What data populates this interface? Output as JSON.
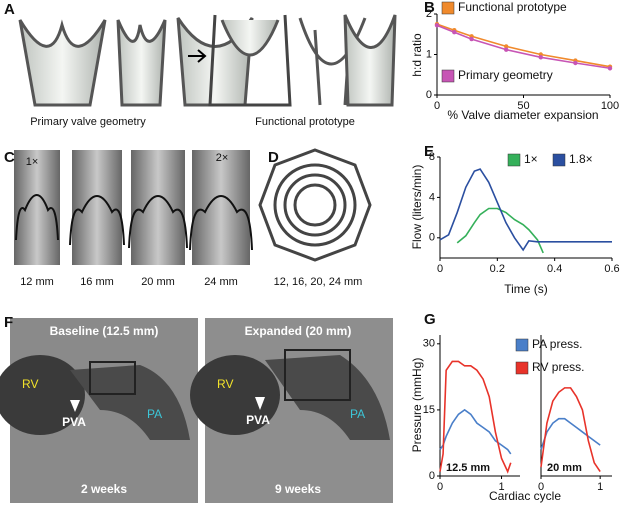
{
  "chart_data": [
    {
      "type": "line",
      "panel": "B",
      "xlabel": "% Valve diameter expansion",
      "ylabel": "h:d ratio",
      "x": [
        0,
        10,
        20,
        40,
        60,
        80,
        100
      ],
      "xlim": [
        0,
        100
      ],
      "ylim": [
        0,
        2
      ],
      "xticks": [
        0,
        50,
        100
      ],
      "yticks": [
        0,
        1,
        2
      ],
      "markers": true,
      "series": [
        {
          "name": "Functional prototype",
          "color": "#f08a2c",
          "values": [
            1.75,
            1.6,
            1.45,
            1.2,
            1.0,
            0.85,
            0.7
          ]
        },
        {
          "name": "Primary geometry",
          "color": "#c755b5",
          "values": [
            1.72,
            1.55,
            1.38,
            1.12,
            0.93,
            0.79,
            0.66
          ]
        }
      ]
    },
    {
      "type": "line",
      "panel": "E",
      "xlabel": "Time (s)",
      "ylabel": "Flow (liters/min)",
      "x": [
        0,
        0.03,
        0.06,
        0.09,
        0.12,
        0.14,
        0.17,
        0.2,
        0.23,
        0.26,
        0.29,
        0.31,
        0.34,
        0.36,
        0.4,
        0.5,
        0.6
      ],
      "xlim": [
        0,
        0.6
      ],
      "ylim": [
        -2,
        8
      ],
      "xticks": [
        0,
        0.2,
        0.4,
        0.6
      ],
      "yticks": [
        0,
        4,
        8
      ],
      "series": [
        {
          "name": "1×",
          "color": "#35b05a",
          "values": [
            null,
            null,
            -0.5,
            0.2,
            1.5,
            2.3,
            2.9,
            2.9,
            2.5,
            1.8,
            1.3,
            0.8,
            -0.2,
            -1.5,
            null,
            null,
            null
          ]
        },
        {
          "name": "1.8×",
          "color": "#2b4fa0",
          "values": [
            -0.2,
            0.3,
            2.5,
            5.0,
            6.6,
            6.8,
            5.5,
            3.5,
            1.5,
            0.0,
            -1.2,
            -0.3,
            -0.4,
            -0.4,
            -0.4,
            -0.4,
            -0.4
          ]
        }
      ]
    },
    {
      "type": "line",
      "panel": "G",
      "xlabel": "Cardiac cycle",
      "ylabel": "Pressure (mmHg)",
      "annotation": "12.5 mm",
      "x": [
        0,
        0.05,
        0.1,
        0.2,
        0.3,
        0.4,
        0.5,
        0.6,
        0.7,
        0.8,
        0.9,
        1.0,
        1.1,
        1.15
      ],
      "xlim": [
        0,
        1.3
      ],
      "ylim": [
        0,
        32
      ],
      "xticks": [
        0,
        1
      ],
      "yticks": [
        0,
        15,
        30
      ],
      "series": [
        {
          "color": "#4a7fc9",
          "values": [
            6,
            7,
            9,
            12,
            14,
            15,
            14,
            12,
            11,
            10,
            8,
            7,
            6,
            5
          ]
        },
        {
          "color": "#e8332a",
          "values": [
            1,
            5,
            24,
            26,
            26,
            25,
            25,
            24,
            22,
            18,
            10,
            4,
            1,
            3
          ]
        }
      ]
    },
    {
      "type": "line",
      "annotation": "20 mm",
      "x": [
        0,
        0.1,
        0.2,
        0.3,
        0.4,
        0.5,
        0.6,
        0.7,
        0.8,
        0.9,
        1.0
      ],
      "xlim": [
        0,
        1.2
      ],
      "ylim": [
        0,
        32
      ],
      "xticks": [
        0,
        1
      ],
      "series": [
        {
          "name": "PA press.",
          "color": "#4a7fc9",
          "values": [
            6,
            10,
            12,
            13,
            13,
            12,
            11,
            10,
            9,
            8,
            7
          ]
        },
        {
          "name": "RV press.",
          "color": "#e8332a",
          "values": [
            2,
            12,
            17,
            19,
            20,
            20,
            18,
            15,
            8,
            3,
            1
          ]
        }
      ]
    }
  ],
  "panel_a": {
    "panel": "A",
    "left": "Primary valve geometry",
    "right": "Functional prototype"
  },
  "panel_c": {
    "panel": "C",
    "scale_small": "1×",
    "scale_large": "2×",
    "sizes": [
      "12 mm",
      "16 mm",
      "20 mm",
      "24 mm"
    ]
  },
  "panel_d": {
    "panel": "D",
    "caption": "12, 16, 20, 24 mm"
  },
  "panel_f": {
    "panel": "F",
    "left_title": "Baseline (12.5 mm)",
    "right_title": "Expanded (20 mm)",
    "rv": "RV",
    "pva": "PVA",
    "pa": "PA",
    "left_time": "2 weeks",
    "right_time": "9 weeks"
  }
}
